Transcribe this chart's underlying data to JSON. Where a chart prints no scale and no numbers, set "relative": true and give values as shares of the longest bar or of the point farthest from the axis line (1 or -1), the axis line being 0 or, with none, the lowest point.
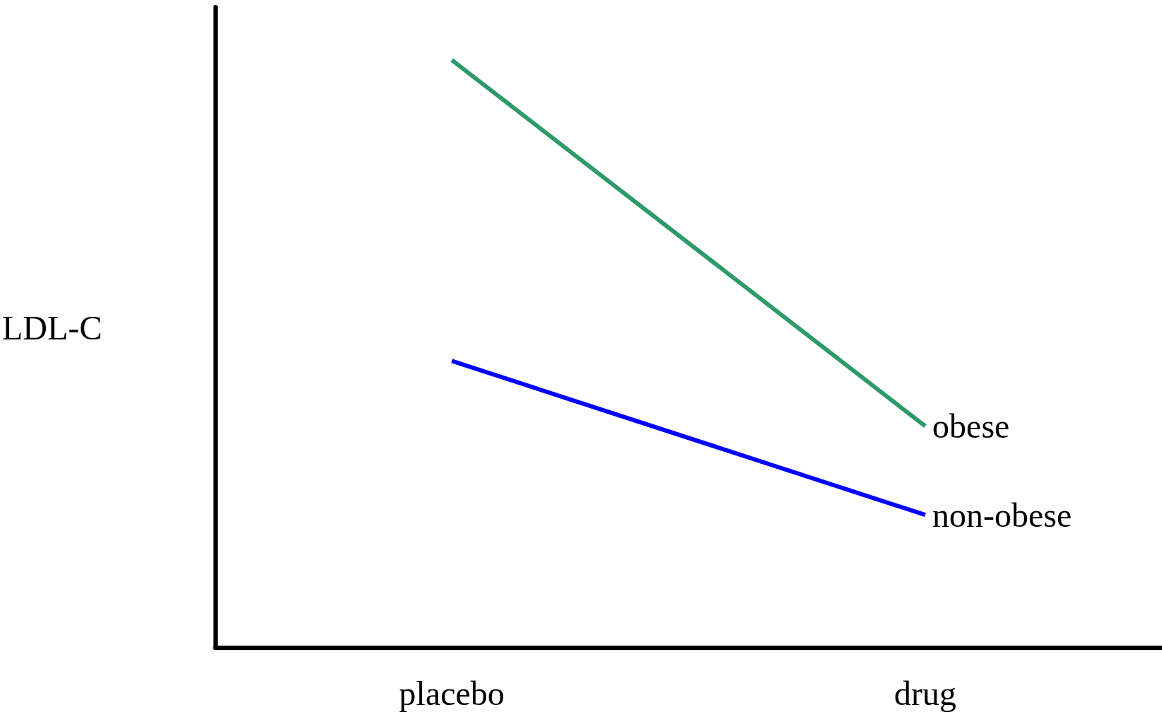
{
  "chart_data": {
    "type": "line",
    "relative": true,
    "ylabel": "LDL-C",
    "categories": [
      "placebo",
      "drug"
    ],
    "series": [
      {
        "name": "obese",
        "color": "#2e9a6a",
        "values": [
          1,
          0.377
        ]
      },
      {
        "name": "non-obese",
        "color": "#0000ff",
        "values": [
          0.488,
          0.226
        ]
      }
    ],
    "legend": false,
    "grid": false,
    "marker": "none",
    "line_style": "solid"
  }
}
